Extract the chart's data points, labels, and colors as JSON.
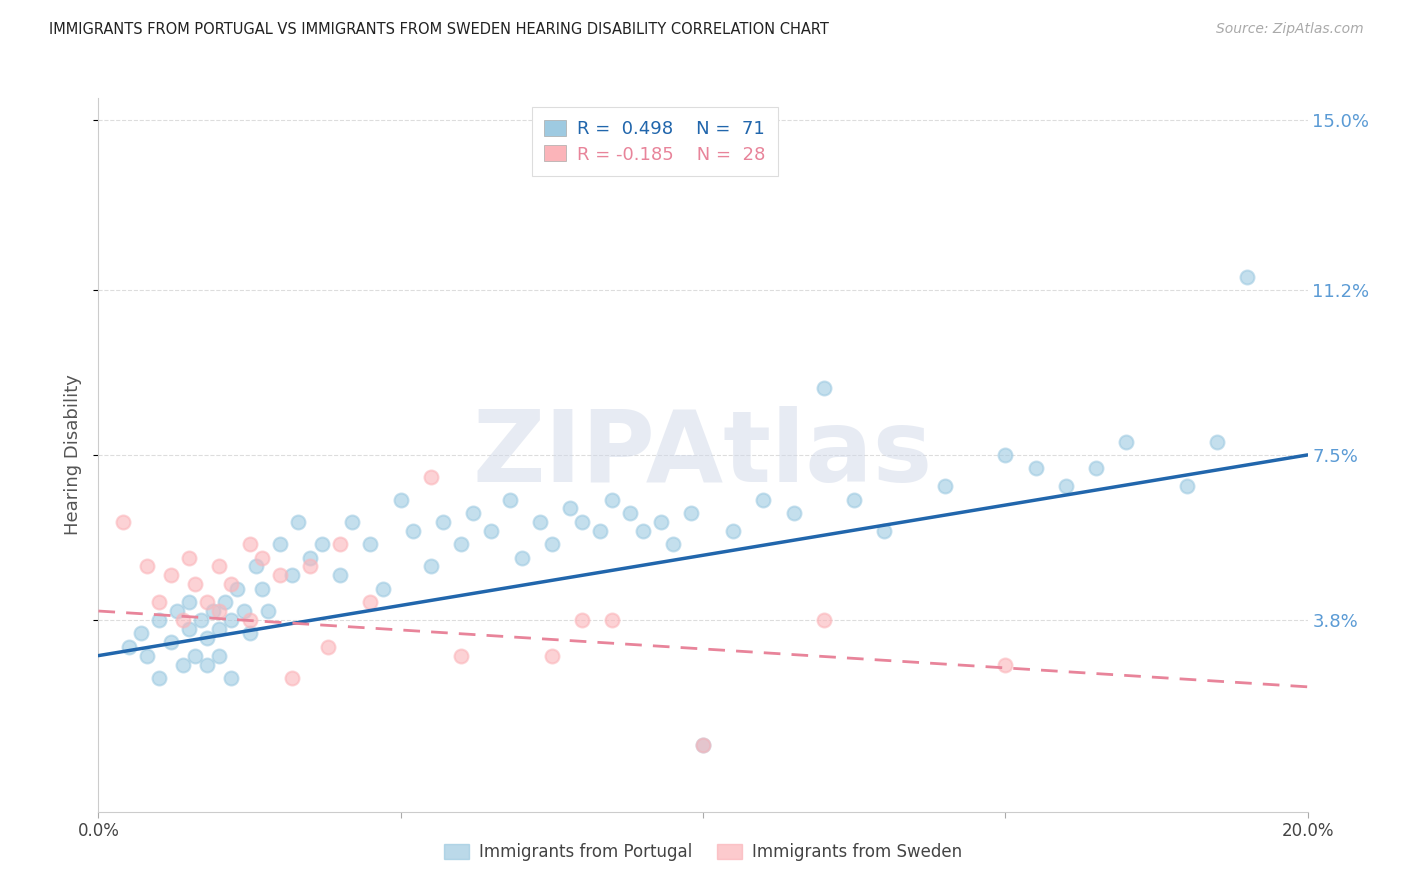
{
  "title": "IMMIGRANTS FROM PORTUGAL VS IMMIGRANTS FROM SWEDEN HEARING DISABILITY CORRELATION CHART",
  "source": "Source: ZipAtlas.com",
  "ylabel": "Hearing Disability",
  "legend_label1": "Immigrants from Portugal",
  "legend_label2": "Immigrants from Sweden",
  "R1": 0.498,
  "N1": 71,
  "R2": -0.185,
  "N2": 28,
  "xlim": [
    0.0,
    0.2
  ],
  "ylim": [
    -0.005,
    0.155
  ],
  "yticks": [
    0.038,
    0.075,
    0.112,
    0.15
  ],
  "ytick_labels": [
    "3.8%",
    "7.5%",
    "11.2%",
    "15.0%"
  ],
  "xticks": [
    0.0,
    0.05,
    0.1,
    0.15,
    0.2
  ],
  "xtick_labels": [
    "0.0%",
    "",
    "",
    "",
    "20.0%"
  ],
  "color1": "#9ecae1",
  "color2": "#fbb4b9",
  "trendline1_color": "#2166ac",
  "trendline2_color": "#e8849a",
  "background_color": "#ffffff",
  "grid_color": "#dddddd",
  "watermark_text": "ZIPAtlas",
  "watermark_color": "#d0d8e8",
  "blue_scatter_x": [
    0.005,
    0.007,
    0.008,
    0.01,
    0.01,
    0.012,
    0.013,
    0.014,
    0.015,
    0.015,
    0.016,
    0.017,
    0.018,
    0.018,
    0.019,
    0.02,
    0.02,
    0.021,
    0.022,
    0.022,
    0.023,
    0.024,
    0.025,
    0.026,
    0.027,
    0.028,
    0.03,
    0.032,
    0.033,
    0.035,
    0.037,
    0.04,
    0.042,
    0.045,
    0.047,
    0.05,
    0.052,
    0.055,
    0.057,
    0.06,
    0.062,
    0.065,
    0.068,
    0.07,
    0.073,
    0.075,
    0.078,
    0.08,
    0.083,
    0.085,
    0.088,
    0.09,
    0.093,
    0.095,
    0.098,
    0.1,
    0.105,
    0.11,
    0.115,
    0.12,
    0.125,
    0.13,
    0.14,
    0.15,
    0.155,
    0.16,
    0.165,
    0.17,
    0.18,
    0.185,
    0.19
  ],
  "blue_scatter_y": [
    0.032,
    0.035,
    0.03,
    0.038,
    0.025,
    0.033,
    0.04,
    0.028,
    0.036,
    0.042,
    0.03,
    0.038,
    0.034,
    0.028,
    0.04,
    0.036,
    0.03,
    0.042,
    0.038,
    0.025,
    0.045,
    0.04,
    0.035,
    0.05,
    0.045,
    0.04,
    0.055,
    0.048,
    0.06,
    0.052,
    0.055,
    0.048,
    0.06,
    0.055,
    0.045,
    0.065,
    0.058,
    0.05,
    0.06,
    0.055,
    0.062,
    0.058,
    0.065,
    0.052,
    0.06,
    0.055,
    0.063,
    0.06,
    0.058,
    0.065,
    0.062,
    0.058,
    0.06,
    0.055,
    0.062,
    0.01,
    0.058,
    0.065,
    0.062,
    0.09,
    0.065,
    0.058,
    0.068,
    0.075,
    0.072,
    0.068,
    0.072,
    0.078,
    0.068,
    0.078,
    0.115
  ],
  "pink_scatter_x": [
    0.004,
    0.008,
    0.01,
    0.012,
    0.014,
    0.015,
    0.016,
    0.018,
    0.02,
    0.02,
    0.022,
    0.025,
    0.025,
    0.027,
    0.03,
    0.032,
    0.035,
    0.038,
    0.04,
    0.045,
    0.055,
    0.06,
    0.075,
    0.08,
    0.085,
    0.1,
    0.12,
    0.15
  ],
  "pink_scatter_y": [
    0.06,
    0.05,
    0.042,
    0.048,
    0.038,
    0.052,
    0.046,
    0.042,
    0.05,
    0.04,
    0.046,
    0.055,
    0.038,
    0.052,
    0.048,
    0.025,
    0.05,
    0.032,
    0.055,
    0.042,
    0.07,
    0.03,
    0.03,
    0.038,
    0.038,
    0.01,
    0.038,
    0.028
  ],
  "trendline1_x": [
    0.0,
    0.2
  ],
  "trendline1_y": [
    0.03,
    0.075
  ],
  "trendline2_x": [
    0.0,
    0.2
  ],
  "trendline2_y": [
    0.04,
    0.023
  ]
}
